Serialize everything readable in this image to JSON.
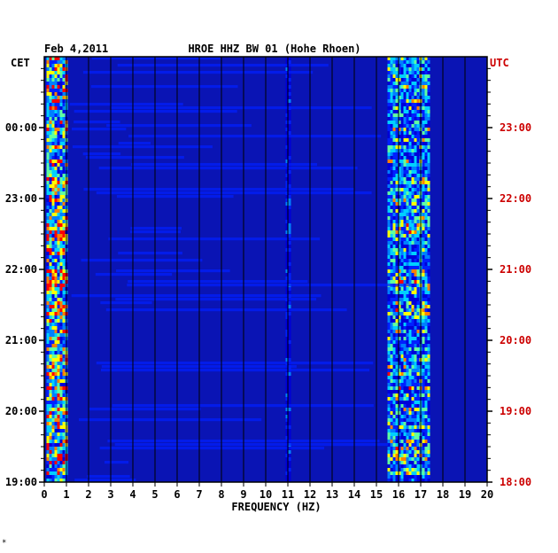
{
  "chart_data": {
    "type": "heatmap",
    "title": "HROE HHZ BW 01 (Hohe Rhoen)",
    "date": "Feb 4,2011",
    "xlabel": "FREQUENCY (HZ)",
    "xlim": [
      0,
      20
    ],
    "x_ticks": [
      "0",
      "1",
      "2",
      "3",
      "4",
      "5",
      "6",
      "7",
      "8",
      "9",
      "10",
      "11",
      "12",
      "13",
      "14",
      "15",
      "16",
      "17",
      "18",
      "19",
      "20"
    ],
    "left_axis_label": "CET",
    "right_axis_label": "UTC",
    "left_ticks": [
      "00:00",
      "23:00",
      "22:00",
      "21:00",
      "20:00",
      "19:00"
    ],
    "right_ticks": [
      "23:00",
      "22:00",
      "21:00",
      "20:00",
      "19:00",
      "18:00"
    ],
    "grid": true,
    "colormap": [
      "#00008c",
      "#0000d8",
      "#0020ff",
      "#0080ff",
      "#00d0ff",
      "#60ffa0",
      "#ffff00",
      "#ff8000",
      "#ff0000"
    ],
    "background_color": "#0a14b4",
    "right_label_color": "#cc0000",
    "energy_bands": [
      {
        "from_hz": 0.1,
        "to_hz": 1.0,
        "level": "high"
      },
      {
        "from_hz": 15.5,
        "to_hz": 17.4,
        "level": "medium"
      },
      {
        "from_hz": 10.9,
        "to_hz": 11.1,
        "level": "low"
      }
    ]
  },
  "footer_mark": "*"
}
